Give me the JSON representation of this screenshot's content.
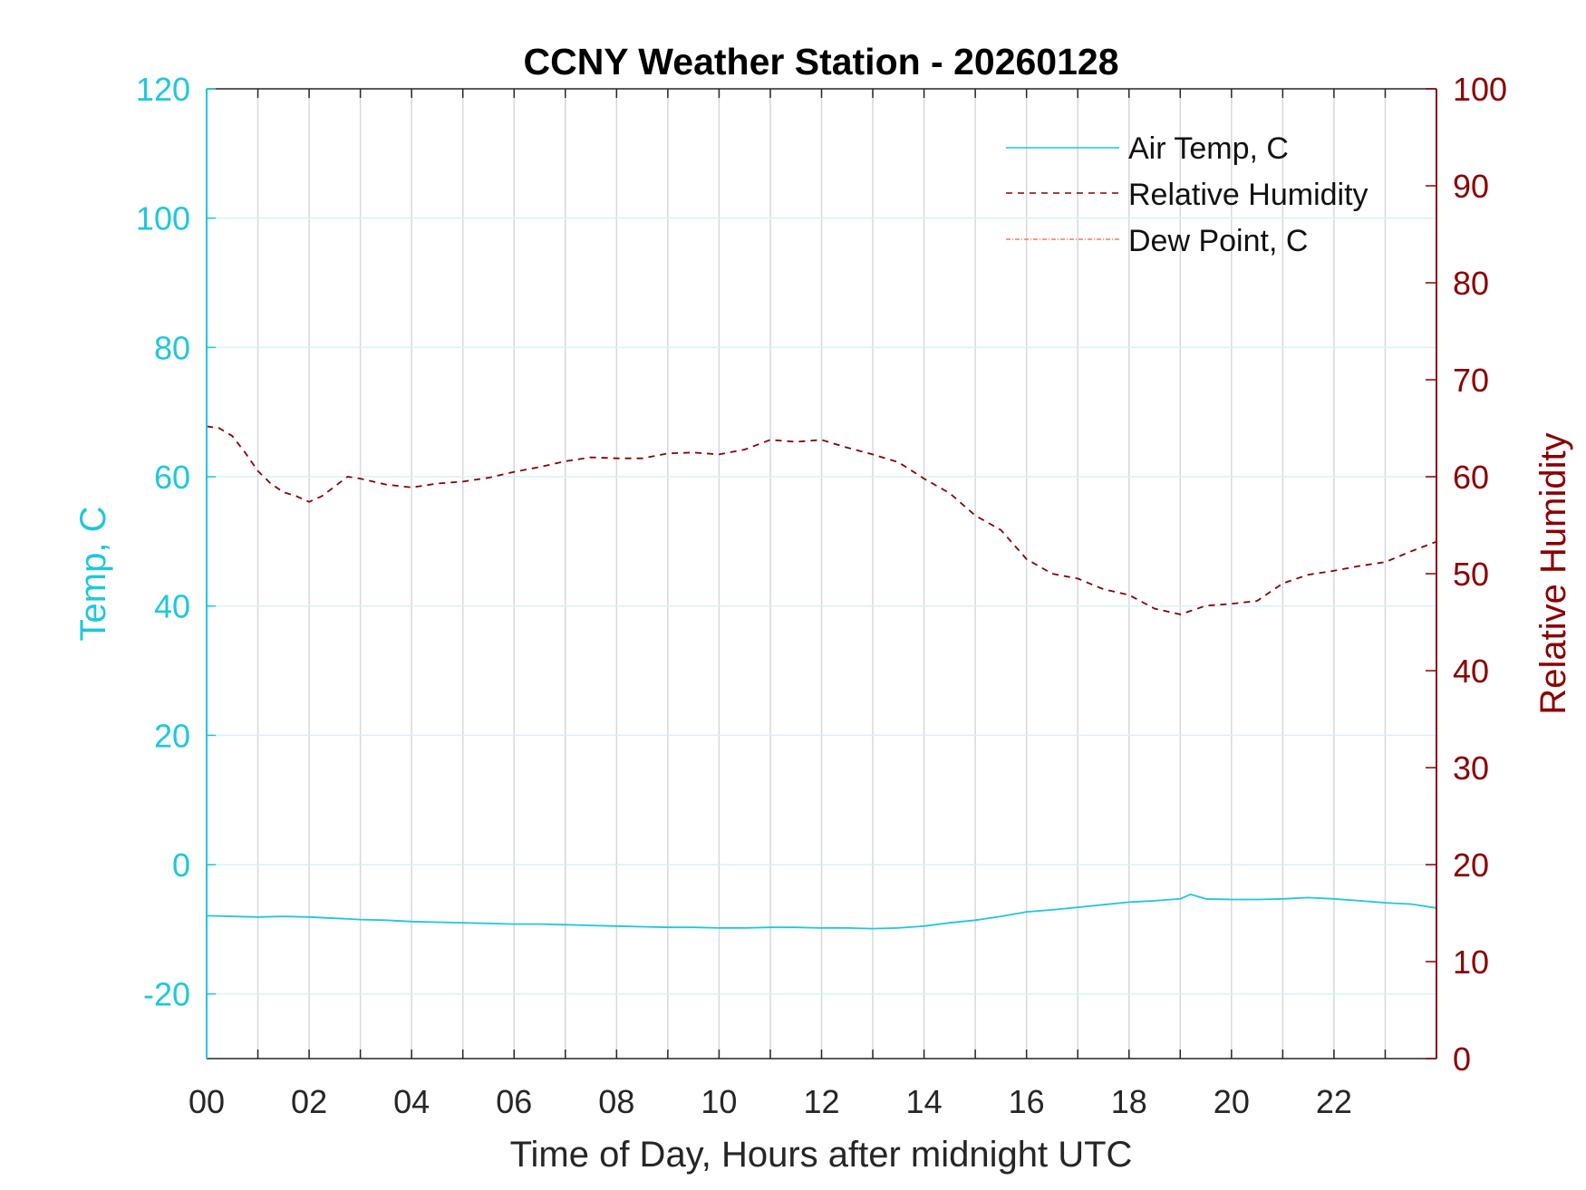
{
  "chart_data": {
    "type": "line",
    "title": "CCNY Weather Station - 20260128",
    "xlabel": "Time of Day, Hours after midnight UTC",
    "ylabel_left": "Temp, C",
    "ylabel_right": "Relative Humidity",
    "xlim": [
      0,
      24
    ],
    "ylim_left": [
      -30,
      120
    ],
    "ylim_right": [
      0,
      100
    ],
    "x_ticks": [
      0,
      2,
      4,
      6,
      8,
      10,
      12,
      14,
      16,
      18,
      20,
      22
    ],
    "x_tick_labels": [
      "00",
      "02",
      "04",
      "06",
      "08",
      "10",
      "12",
      "14",
      "16",
      "18",
      "20",
      "22"
    ],
    "y_left_ticks": [
      -20,
      0,
      20,
      40,
      60,
      80,
      100,
      120
    ],
    "y_left_tick_labels": [
      "-20",
      "0",
      "20",
      "40",
      "60",
      "80",
      "100",
      "120"
    ],
    "y_right_ticks": [
      0,
      10,
      20,
      30,
      40,
      50,
      60,
      70,
      80,
      90,
      100
    ],
    "y_right_tick_labels": [
      "0",
      "10",
      "20",
      "30",
      "40",
      "50",
      "60",
      "70",
      "80",
      "90",
      "100"
    ],
    "grid": true,
    "legend_position": "top-right",
    "colors": {
      "left_axis": "#1ec8dc",
      "right_axis": "#8b0000",
      "air_temp": "#1ec8dc",
      "relative_humidity": "#8b0000",
      "dew_point": "#ff5a3c",
      "grid_vertical": "#d2d9e0",
      "grid_horizontal": "#d6f3f8"
    },
    "series": [
      {
        "name": "Air Temp, C",
        "axis": "left",
        "style": "solid",
        "x": [
          0,
          0.5,
          1,
          1.5,
          2,
          2.5,
          3,
          3.5,
          4,
          4.5,
          5,
          5.5,
          6,
          6.5,
          7,
          7.5,
          8,
          8.5,
          9,
          9.5,
          10,
          10.5,
          11,
          11.5,
          12,
          12.5,
          13,
          13.5,
          14,
          14.5,
          15,
          15.5,
          16,
          16.5,
          17,
          17.5,
          18,
          18.5,
          19,
          19.2,
          19.5,
          20,
          20.5,
          21,
          21.5,
          22,
          22.5,
          23,
          23.5,
          24
        ],
        "y": [
          -7.9,
          -8.0,
          -8.1,
          -8.0,
          -8.1,
          -8.3,
          -8.5,
          -8.6,
          -8.8,
          -8.9,
          -9.0,
          -9.1,
          -9.2,
          -9.2,
          -9.3,
          -9.4,
          -9.5,
          -9.6,
          -9.7,
          -9.7,
          -9.8,
          -9.8,
          -9.7,
          -9.7,
          -9.8,
          -9.8,
          -9.9,
          -9.8,
          -9.5,
          -9.0,
          -8.6,
          -8.0,
          -7.3,
          -7.0,
          -6.6,
          -6.2,
          -5.8,
          -5.6,
          -5.3,
          -4.6,
          -5.3,
          -5.4,
          -5.4,
          -5.3,
          -5.1,
          -5.3,
          -5.6,
          -5.9,
          -6.1,
          -6.7
        ]
      },
      {
        "name": "Relative Humidity",
        "axis": "right",
        "style": "dashed",
        "x": [
          0,
          0.25,
          0.5,
          0.75,
          1,
          1.25,
          1.5,
          1.75,
          2,
          2.25,
          2.5,
          2.75,
          3,
          3.5,
          4,
          4.5,
          5,
          5.5,
          6,
          6.5,
          7,
          7.5,
          8,
          8.5,
          9,
          9.5,
          10,
          10.5,
          11,
          11.5,
          12,
          12.5,
          13,
          13.5,
          14,
          14.5,
          15,
          15.5,
          16,
          16.5,
          17,
          17.5,
          18,
          18.5,
          19,
          19.5,
          20,
          20.5,
          21,
          21.5,
          22,
          22.5,
          23,
          23.5,
          24
        ],
        "y": [
          65.2,
          65.0,
          64.2,
          62.5,
          60.6,
          59.3,
          58.4,
          58.0,
          57.4,
          58.0,
          59.0,
          60.0,
          59.8,
          59.2,
          58.9,
          59.3,
          59.5,
          59.9,
          60.5,
          61.0,
          61.6,
          62.0,
          61.9,
          61.9,
          62.4,
          62.5,
          62.3,
          62.8,
          63.8,
          63.6,
          63.8,
          63.0,
          62.3,
          61.5,
          59.8,
          58.3,
          56.0,
          54.5,
          51.5,
          50.0,
          49.5,
          48.4,
          47.8,
          46.4,
          45.8,
          46.7,
          46.9,
          47.2,
          49.0,
          49.9,
          50.3,
          50.8,
          51.2,
          52.3,
          53.3
        ]
      },
      {
        "name": "Dew Point, C",
        "axis": "left",
        "style": "dash-dot",
        "x": [],
        "y": []
      }
    ]
  }
}
